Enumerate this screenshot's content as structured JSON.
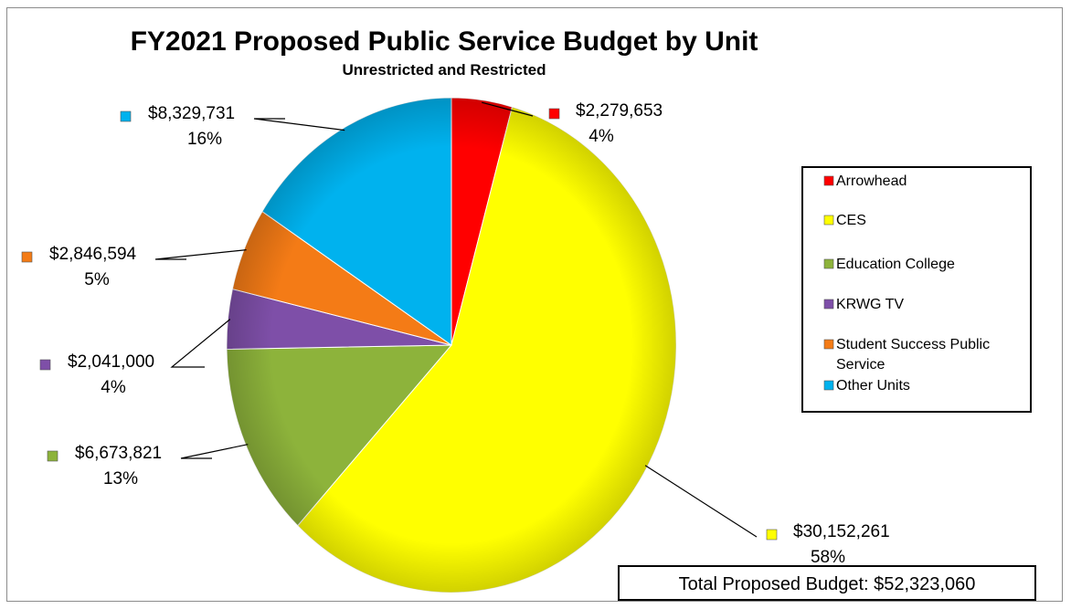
{
  "colors": {
    "red": "#ff0000",
    "yellow": "#ffff00",
    "green": "#8db33b",
    "purple": "#7e4fa8",
    "orange": "#f47b16",
    "cyan": "#00b2ee"
  },
  "chart_data": {
    "type": "pie",
    "title": "FY2021 Proposed Public Service Budget by Unit",
    "subtitle": "Unrestricted and Restricted",
    "legend_position": "right",
    "slices": [
      {
        "name": "Arrowhead",
        "value": 2279653,
        "value_label": "$2,279,653",
        "percent_label": "4%",
        "color": "#ff0000"
      },
      {
        "name": "CES",
        "value": 30152261,
        "value_label": "$30,152,261",
        "percent_label": "58%",
        "color": "#ffff00"
      },
      {
        "name": "Education College",
        "value": 6673821,
        "value_label": "$6,673,821",
        "percent_label": "13%",
        "color": "#8db33b"
      },
      {
        "name": "KRWG TV",
        "value": 2041000,
        "value_label": "$2,041,000",
        "percent_label": "4%",
        "color": "#7e4fa8"
      },
      {
        "name": "Student Success Public Service",
        "value": 2846594,
        "value_label": "$2,846,594",
        "percent_label": "5%",
        "color": "#f47b16"
      },
      {
        "name": "Other Units",
        "value": 8329731,
        "value_label": "$8,329,731",
        "percent_label": "16%",
        "color": "#00b2ee"
      }
    ],
    "legend_lines": [
      [
        "Arrowhead"
      ],
      [
        "CES"
      ],
      [
        "Education College"
      ],
      [
        "KRWG TV"
      ],
      [
        "Student Success Public",
        "Service"
      ],
      [
        "Other Units"
      ]
    ],
    "total_label": "Total Proposed Budget: $52,323,060"
  }
}
